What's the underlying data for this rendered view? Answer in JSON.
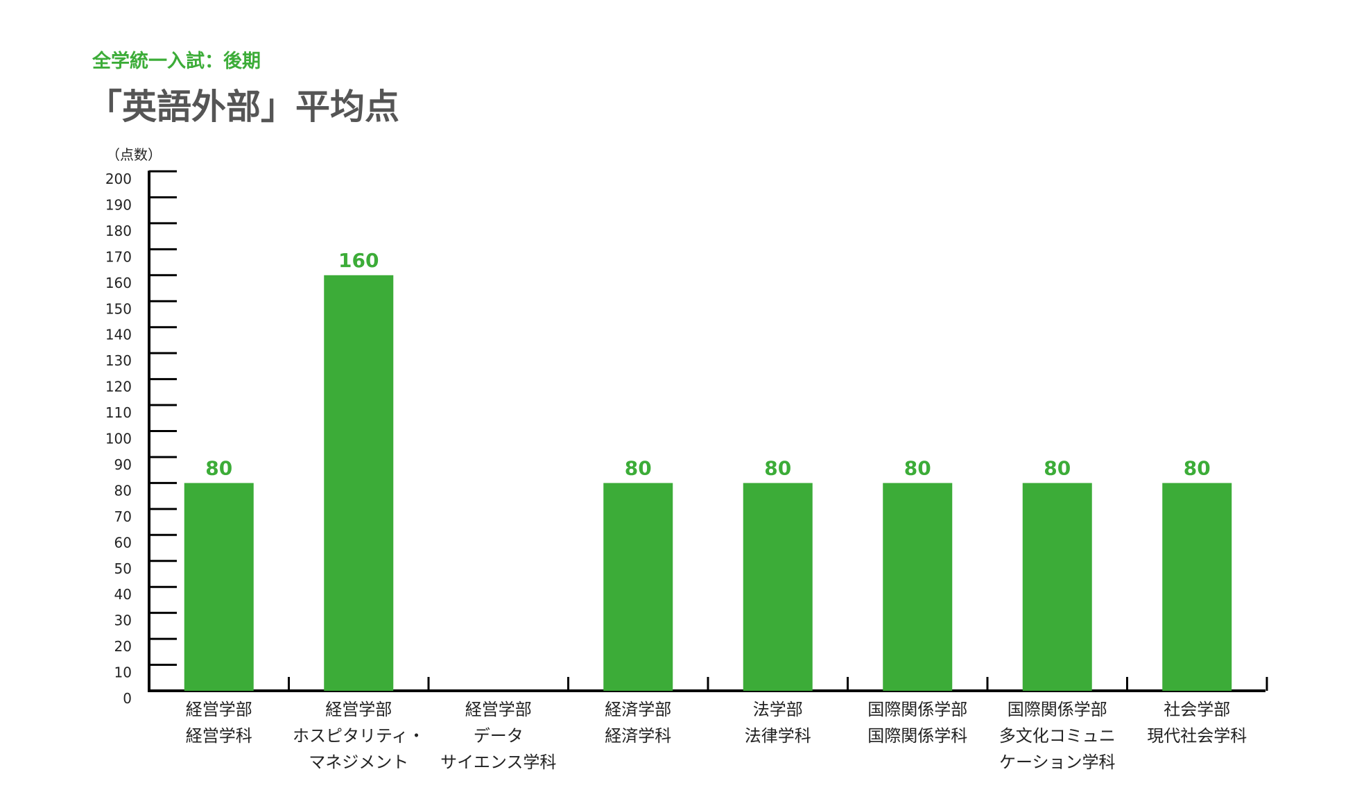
{
  "header": {
    "subtitle": "全学統一入試：後期",
    "title": "「英語外部」平均点"
  },
  "colors": {
    "bar": "#3cac38",
    "axis": "#000000",
    "text": "#222222",
    "title": "#555555"
  },
  "chart_data": {
    "type": "bar",
    "title": "「英語外部」平均点",
    "subtitle": "全学統一入試：後期",
    "ylabel": "（点数）",
    "ylim": [
      0,
      200
    ],
    "ytick_step": 10,
    "grid": false,
    "categories": [
      [
        "経営学部",
        "経営学科"
      ],
      [
        "経営学部",
        "ホスピタリティ・",
        "マネジメント"
      ],
      [
        "経営学部",
        "データ",
        "サイエンス学科"
      ],
      [
        "経済学部",
        "経済学科"
      ],
      [
        "法学部",
        "法律学科"
      ],
      [
        "国際関係学部",
        "国際関係学科"
      ],
      [
        "国際関係学部",
        "多文化コミュニ",
        "ケーション学科"
      ],
      [
        "社会学部",
        "現代社会学科"
      ]
    ],
    "values": [
      80,
      160,
      null,
      80,
      80,
      80,
      80,
      80
    ]
  }
}
